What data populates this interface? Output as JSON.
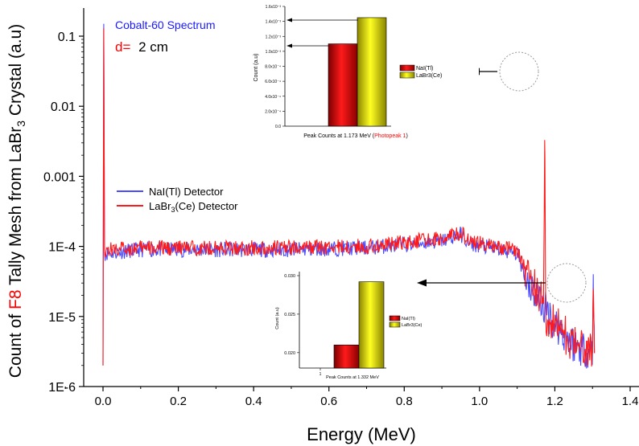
{
  "chart_data": [
    {
      "type": "line",
      "title": "Cobalt-60 Spectrum",
      "subtitle_prefix": "d=",
      "subtitle_value": "2 cm",
      "xlabel": "Energy (MeV)",
      "ylabel_prefix": "Count of ",
      "ylabel_highlight": "F8",
      "ylabel_middle": " Tally Mesh from LaBr",
      "ylabel_sub": "3",
      "ylabel_suffix": " Crystal (a.u)",
      "yscale": "log",
      "xlim": [
        -0.1,
        1.5
      ],
      "ylim": [
        1e-06,
        0.2
      ],
      "xticks": [
        0.0,
        0.2,
        0.4,
        0.6,
        0.8,
        1.0,
        1.2,
        1.4
      ],
      "xtick_labels": [
        "0.0",
        "0.2",
        "0.4",
        "0.6",
        "0.8",
        "1.0",
        "1.2",
        "1.4"
      ],
      "yticks": [
        1e-06,
        1e-05,
        0.0001,
        0.001,
        0.01,
        0.1
      ],
      "ytick_labels": [
        "1E-6",
        "1E-5",
        "1E-4",
        "0.001",
        "0.01",
        "0.1"
      ],
      "legend_placement": "center-left",
      "series": [
        {
          "name": "NaI(Tl) Detector",
          "color": "#4a4aff",
          "points": [
            [
              0.0,
              2e-06
            ],
            [
              0.002,
              0.15
            ],
            [
              0.004,
              8e-05
            ],
            [
              0.1,
              9e-05
            ],
            [
              0.3,
              9e-05
            ],
            [
              0.5,
              9e-05
            ],
            [
              0.7,
              9.5e-05
            ],
            [
              0.9,
              0.00012
            ],
            [
              0.95,
              0.00015
            ],
            [
              0.97,
              0.00011
            ],
            [
              1.05,
              9e-05
            ],
            [
              1.1,
              8e-05
            ],
            [
              1.12,
              4e-05
            ],
            [
              1.15,
              2e-05
            ],
            [
              1.2,
              8e-06
            ],
            [
              1.25,
              4e-06
            ],
            [
              1.3,
              3e-06
            ],
            [
              1.302,
              4e-05
            ],
            [
              1.305,
              3e-06
            ]
          ]
        },
        {
          "name": "LaBr3(Ce) Detector",
          "legend_label_main": "LaBr",
          "legend_label_sub": "3",
          "legend_label_suffix": "(Ce) Detector",
          "color": "#ff1a1a",
          "points": [
            [
              0.0,
              2e-06
            ],
            [
              0.002,
              0.13
            ],
            [
              0.004,
              9e-05
            ],
            [
              0.1,
              9.5e-05
            ],
            [
              0.3,
              9.5e-05
            ],
            [
              0.5,
              9.5e-05
            ],
            [
              0.7,
              0.0001
            ],
            [
              0.9,
              0.00013
            ],
            [
              0.95,
              0.00016
            ],
            [
              0.97,
              0.00012
            ],
            [
              1.05,
              0.0001
            ],
            [
              1.1,
              9e-05
            ],
            [
              1.12,
              5e-05
            ],
            [
              1.15,
              2.5e-05
            ],
            [
              1.17,
              1.5e-05
            ],
            [
              1.173,
              0.0033
            ],
            [
              1.176,
              1e-05
            ],
            [
              1.2,
              8e-06
            ],
            [
              1.25,
              4e-06
            ],
            [
              1.3,
              3e-06
            ],
            [
              1.302,
              2.5e-05
            ],
            [
              1.305,
              3e-06
            ]
          ]
        }
      ]
    },
    {
      "type": "bar",
      "title": "Peak Counts at 1.173 MeV (Photopeak 1)",
      "xlabel_main": "Peak Counts at 1.173 MeV (",
      "xlabel_highlight": "Photopeak 1",
      "xlabel_end": ")",
      "ylabel": "Count (a.u)",
      "ylim": [
        0.0,
        0.0016
      ],
      "ytick_labels": [
        "0.0",
        "2.0x10⁻⁴",
        "4.0x10⁻⁴",
        "6.0x10⁻⁴",
        "8.0x10⁻⁴",
        "1.0x10⁻³",
        "1.2x10⁻³",
        "1.4x10⁻³",
        "1.6x10⁻³"
      ],
      "yticks": [
        0.0,
        0.0002,
        0.0004,
        0.0006,
        0.0008,
        0.001,
        0.0012,
        0.0014,
        0.0016
      ],
      "legend_placement": "right",
      "series": [
        {
          "name": "NaI(Tl)",
          "value": 0.0011,
          "color": "#d41010"
        },
        {
          "name": "LaBr3(Ce)",
          "value": 0.00145,
          "color": "#e8e000"
        }
      ]
    },
    {
      "type": "bar",
      "title": "Peak Counts at 1.332 MeV",
      "xlabel": "Peak Counts at 1.332 MeV",
      "ylabel": "Count (a.u)",
      "ylim": [
        0.018,
        0.03
      ],
      "ytick_labels": [
        "0.020",
        "0.025",
        "0.030"
      ],
      "yticks": [
        0.02,
        0.025,
        0.03
      ],
      "xtick_label": "1",
      "legend_placement": "right",
      "series": [
        {
          "name": "NaI(Tl)",
          "value": 0.021,
          "color": "#d41010"
        },
        {
          "name": "LaBr3(Ce)",
          "value": 0.0292,
          "color": "#e8e000"
        }
      ]
    }
  ],
  "colors": {
    "title": "#1a1aff",
    "subtitle": "#ff0000",
    "highlight": "#ff0000",
    "axis": "#000000"
  }
}
